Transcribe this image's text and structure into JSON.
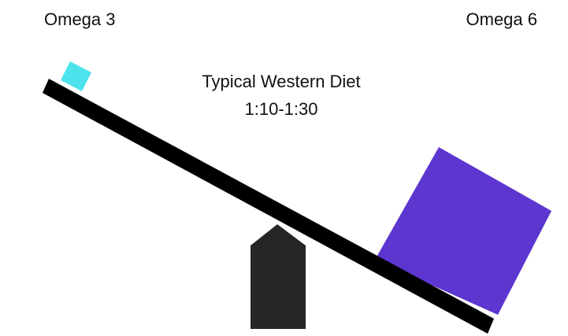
{
  "labels": {
    "left": "Omega 3",
    "right": "Omega 6"
  },
  "caption": {
    "title": "Typical Western Diet",
    "ratio": "1:10-1:30"
  }
}
